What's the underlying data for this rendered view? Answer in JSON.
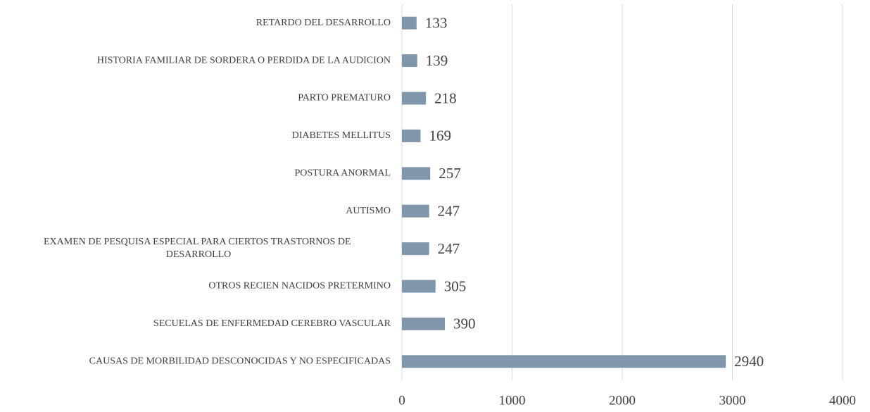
{
  "chart_data": {
    "type": "barh",
    "categories": [
      "RETARDO DEL DESARROLLO",
      "HISTORIA FAMILIAR DE SORDERA O PERDIDA DE LA AUDICION",
      "PARTO PREMATURO",
      "DIABETES MELLITUS",
      "POSTURA ANORMAL",
      "AUTISMO",
      "EXAMEN DE PESQUISA ESPECIAL PARA CIERTOS TRASTORNOS DE DESARROLLO",
      "OTROS RECIEN NACIDOS PRETERMINO",
      "SECUELAS DE ENFERMEDAD CEREBRO VASCULAR",
      "CAUSAS DE MORBILIDAD DESCONOCIDAS Y NO ESPECIFICADAS"
    ],
    "values": [
      133,
      139,
      218,
      169,
      257,
      247,
      247,
      305,
      390,
      2940
    ],
    "color": "#7f96ab",
    "xlim": [
      0,
      4000
    ],
    "xticks": [
      0,
      1000,
      2000,
      3000,
      4000
    ],
    "grid": true
  }
}
